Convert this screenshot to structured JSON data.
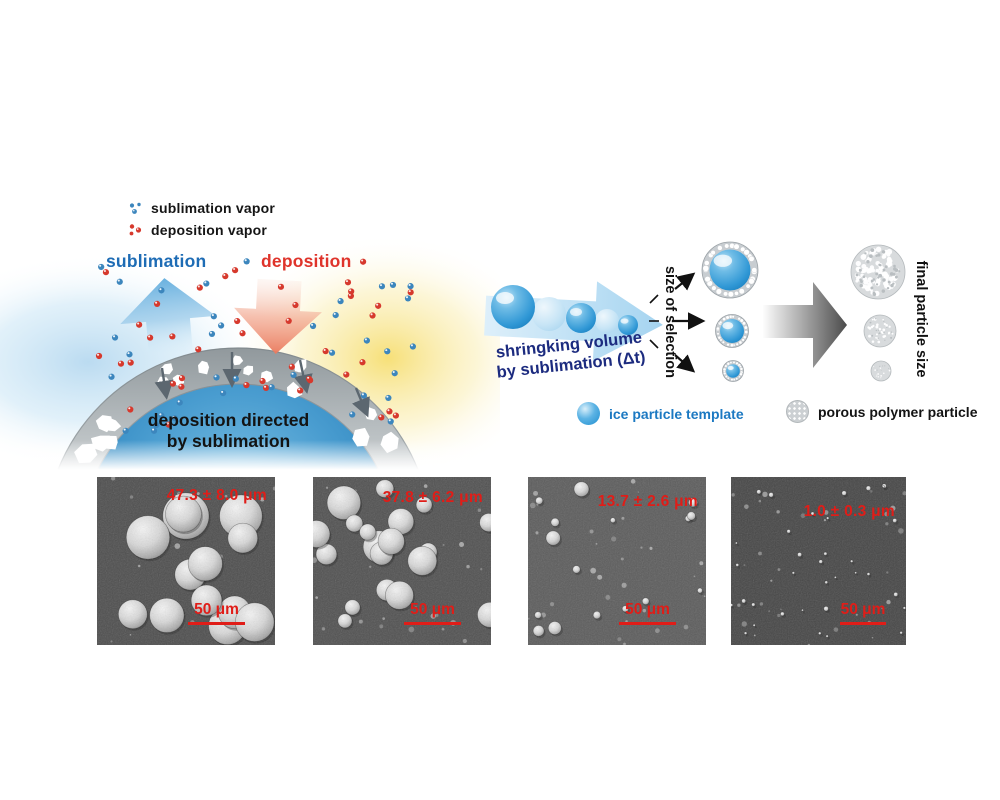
{
  "figure": {
    "left_panel": {
      "legend": [
        {
          "icon": "sublimation-vapor-dots-icon",
          "label": "sublimation vapor"
        },
        {
          "icon": "deposition-vapor-dots-icon",
          "label": "deposition vapor"
        }
      ],
      "sublimation_heading": "sublimation",
      "deposition_heading": "deposition",
      "caption_line1": "deposition directed",
      "caption_line2": "by sublimation"
    },
    "process_panel": {
      "caption_line1": "shringking volume",
      "caption_line2": "by sublimation (Δt)",
      "selection_axis_label": "size of selection",
      "result_axis_label": "final particle size",
      "legend": [
        {
          "icon": "ice-sphere-icon",
          "label": "ice particle template"
        },
        {
          "icon": "porous-sphere-icon",
          "label": "porous polymer particle"
        }
      ]
    },
    "sem_panels": [
      {
        "measurement": "47.3 ± 8.0 μm",
        "scale_label": "50 μm",
        "viz": {
          "bg": "#4e4e4e",
          "count": 13,
          "r_min": 13,
          "r_max": 27,
          "debris": 20
        }
      },
      {
        "measurement": "37.8 ± 6.2 μm",
        "scale_label": "50 μm",
        "viz": {
          "bg": "#515151",
          "count": 19,
          "r_min": 7,
          "r_max": 17,
          "debris": 26
        }
      },
      {
        "measurement": "13.7 ± 2.6 μm",
        "scale_label": "50 μm",
        "viz": {
          "bg": "#5c5c5c",
          "count": 16,
          "r_min": 2.5,
          "r_max": 7.5,
          "debris": 30
        }
      },
      {
        "measurement": "1.0 ± 0.3 μm",
        "scale_label": "50 μm",
        "viz": {
          "bg": "#464646",
          "count": 34,
          "r_min": 1.0,
          "r_max": 2.4,
          "debris": 34
        }
      }
    ],
    "colors": {
      "measurement_red": "#e01d18",
      "sublimation_blue": "#1e6cb5",
      "deposition_red": "#df342b",
      "ice_blue": "#2f97d5",
      "caption_navy": "#1c2b7f",
      "vapor_red": "#d6392d",
      "vapor_blue": "#3c86bd"
    }
  }
}
